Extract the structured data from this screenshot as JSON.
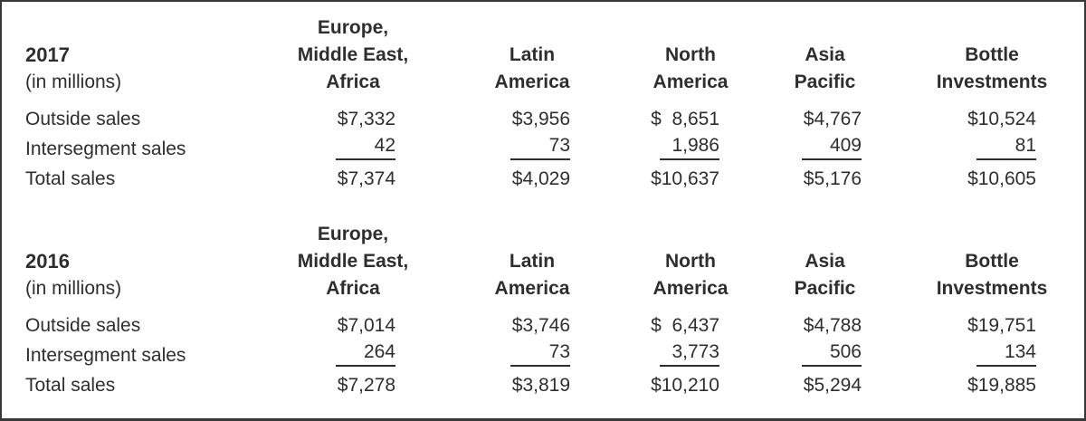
{
  "style": {
    "text_color": "#2e2e2e",
    "border_color": "#383838",
    "background": "#ffffff"
  },
  "sections": [
    {
      "year": "2017",
      "unit_note": "(in millions)",
      "column_headers": [
        "Europe,\nMiddle East,\nAfrica",
        "Latin\nAmerica",
        "North\nAmerica",
        "Asia\nPacific",
        "Bottle\nInvestments"
      ],
      "rows": [
        {
          "label": "Outside sales",
          "values": [
            "$7,332",
            "$3,956",
            "$  8,651",
            "$4,767",
            "$10,524"
          ]
        },
        {
          "label": "Intersegment sales",
          "values": [
            "42",
            "73",
            "1,986",
            "409",
            "81"
          ]
        },
        {
          "label": "Total sales",
          "values": [
            "$7,374",
            "$4,029",
            "$10,637",
            "$5,176",
            "$10,605"
          ]
        }
      ]
    },
    {
      "year": "2016",
      "unit_note": "(in millions)",
      "column_headers": [
        "Europe,\nMiddle East,\nAfrica",
        "Latin\nAmerica",
        "North\nAmerica",
        "Asia\nPacific",
        "Bottle\nInvestments"
      ],
      "rows": [
        {
          "label": "Outside sales",
          "values": [
            "$7,014",
            "$3,746",
            "$  6,437",
            "$4,788",
            "$19,751"
          ]
        },
        {
          "label": "Intersegment sales",
          "values": [
            "264",
            "73",
            "3,773",
            "506",
            "134"
          ]
        },
        {
          "label": "Total sales",
          "values": [
            "$7,278",
            "$3,819",
            "$10,210",
            "$5,294",
            "$19,885"
          ]
        }
      ]
    }
  ]
}
